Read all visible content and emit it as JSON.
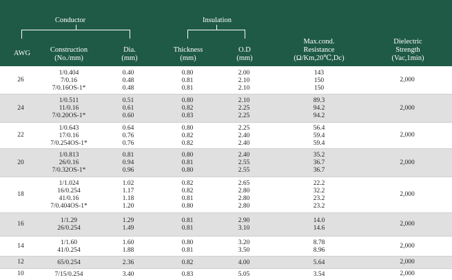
{
  "header": {
    "conductor": "Conductor",
    "insulation": "Insulation",
    "awg": "AWG",
    "construction_1": "Construction",
    "construction_2": "(No./mm)",
    "dia_1": "Dia.",
    "dia_2": "(mm)",
    "thickness_1": "Thickness",
    "thickness_2": "(mm)",
    "od_1": "O.D",
    "od_2": "(mm)",
    "resistance_1": "Max.cond.",
    "resistance_2": "Resistance",
    "resistance_3": "(Ω/Km,20℃,Dc)",
    "dielectric_1": "Dielectric",
    "dielectric_2": "Strength",
    "dielectric_3": "(Vac,1min)"
  },
  "groups": [
    {
      "awg": "26",
      "dielectric": "2,000",
      "shaded": false,
      "rows": [
        {
          "construction": "1/0.404",
          "dia": "0.40",
          "thickness": "0.80",
          "od": "2.00",
          "resistance": "143"
        },
        {
          "construction": "7/0.16",
          "dia": "0.48",
          "thickness": "0.81",
          "od": "2.10",
          "resistance": "150"
        },
        {
          "construction": "7/0.16OS-1*",
          "dia": "0.48",
          "thickness": "0.81",
          "od": "2.10",
          "resistance": "150"
        }
      ]
    },
    {
      "awg": "24",
      "dielectric": "2,000",
      "shaded": true,
      "rows": [
        {
          "construction": "1/0.511",
          "dia": "0.51",
          "thickness": "0.80",
          "od": "2.10",
          "resistance": "89.3"
        },
        {
          "construction": "11/0.16",
          "dia": "0.61",
          "thickness": "0.82",
          "od": "2.25",
          "resistance": "94.2"
        },
        {
          "construction": "7/0.20OS-1*",
          "dia": "0.60",
          "thickness": "0.83",
          "od": "2.25",
          "resistance": "94.2"
        }
      ]
    },
    {
      "awg": "22",
      "dielectric": "2,000",
      "shaded": false,
      "rows": [
        {
          "construction": "1/0.643",
          "dia": "0.64",
          "thickness": "0.80",
          "od": "2.25",
          "resistance": "56.4"
        },
        {
          "construction": "17/0.16",
          "dia": "0.76",
          "thickness": "0.82",
          "od": "2.40",
          "resistance": "59.4"
        },
        {
          "construction": "7/0.254OS-1*",
          "dia": "0.76",
          "thickness": "0.82",
          "od": "2.40",
          "resistance": "59.4"
        }
      ]
    },
    {
      "awg": "20",
      "dielectric": "2,000",
      "shaded": true,
      "rows": [
        {
          "construction": "1/0.813",
          "dia": "0.81",
          "thickness": "0.80",
          "od": "2.40",
          "resistance": "35.2"
        },
        {
          "construction": "26/0.16",
          "dia": "0.94",
          "thickness": "0.81",
          "od": "2.55",
          "resistance": "36.7"
        },
        {
          "construction": "7/0.32OS-1*",
          "dia": "0.96",
          "thickness": "0.80",
          "od": "2.55",
          "resistance": "36.7"
        }
      ]
    },
    {
      "awg": "18",
      "dielectric": "2,000",
      "shaded": false,
      "rows": [
        {
          "construction": "1/1.024",
          "dia": "1.02",
          "thickness": "0.82",
          "od": "2.65",
          "resistance": "22.2"
        },
        {
          "construction": "16/0.254",
          "dia": "1.17",
          "thickness": "0.82",
          "od": "2.80",
          "resistance": "32.2"
        },
        {
          "construction": "41/0.16",
          "dia": "1.18",
          "thickness": "0.81",
          "od": "2.80",
          "resistance": "23.2"
        },
        {
          "construction": "7/0.404OS-1*",
          "dia": "1.20",
          "thickness": "0.80",
          "od": "2.80",
          "resistance": "23.2"
        }
      ]
    },
    {
      "awg": "16",
      "dielectric": "2,000",
      "shaded": true,
      "rows": [
        {
          "construction": "1/1.29",
          "dia": "1.29",
          "thickness": "0.81",
          "od": "2.90",
          "resistance": "14.0"
        },
        {
          "construction": "26/0.254",
          "dia": "1.49",
          "thickness": "0.81",
          "od": "3.10",
          "resistance": "14.6"
        }
      ]
    },
    {
      "awg": "14",
      "dielectric": "2,000",
      "shaded": false,
      "rows": [
        {
          "construction": "1/1.60",
          "dia": "1.60",
          "thickness": "0.80",
          "od": "3.20",
          "resistance": "8.78"
        },
        {
          "construction": "41/0.254",
          "dia": "1.88",
          "thickness": "0.81",
          "od": "3.50",
          "resistance": "8.96"
        }
      ]
    },
    {
      "awg": "12",
      "dielectric": "2,000",
      "shaded": true,
      "rows": [
        {
          "construction": "65/0.254",
          "dia": "2.36",
          "thickness": "0.82",
          "od": "4.00",
          "resistance": "5.64"
        }
      ]
    },
    {
      "awg": "10",
      "dielectric": "2,000",
      "shaded": false,
      "rows": [
        {
          "construction": "7/15/0.254",
          "dia": "3.40",
          "thickness": "0.83",
          "od": "5.05",
          "resistance": "3.54"
        }
      ]
    }
  ]
}
